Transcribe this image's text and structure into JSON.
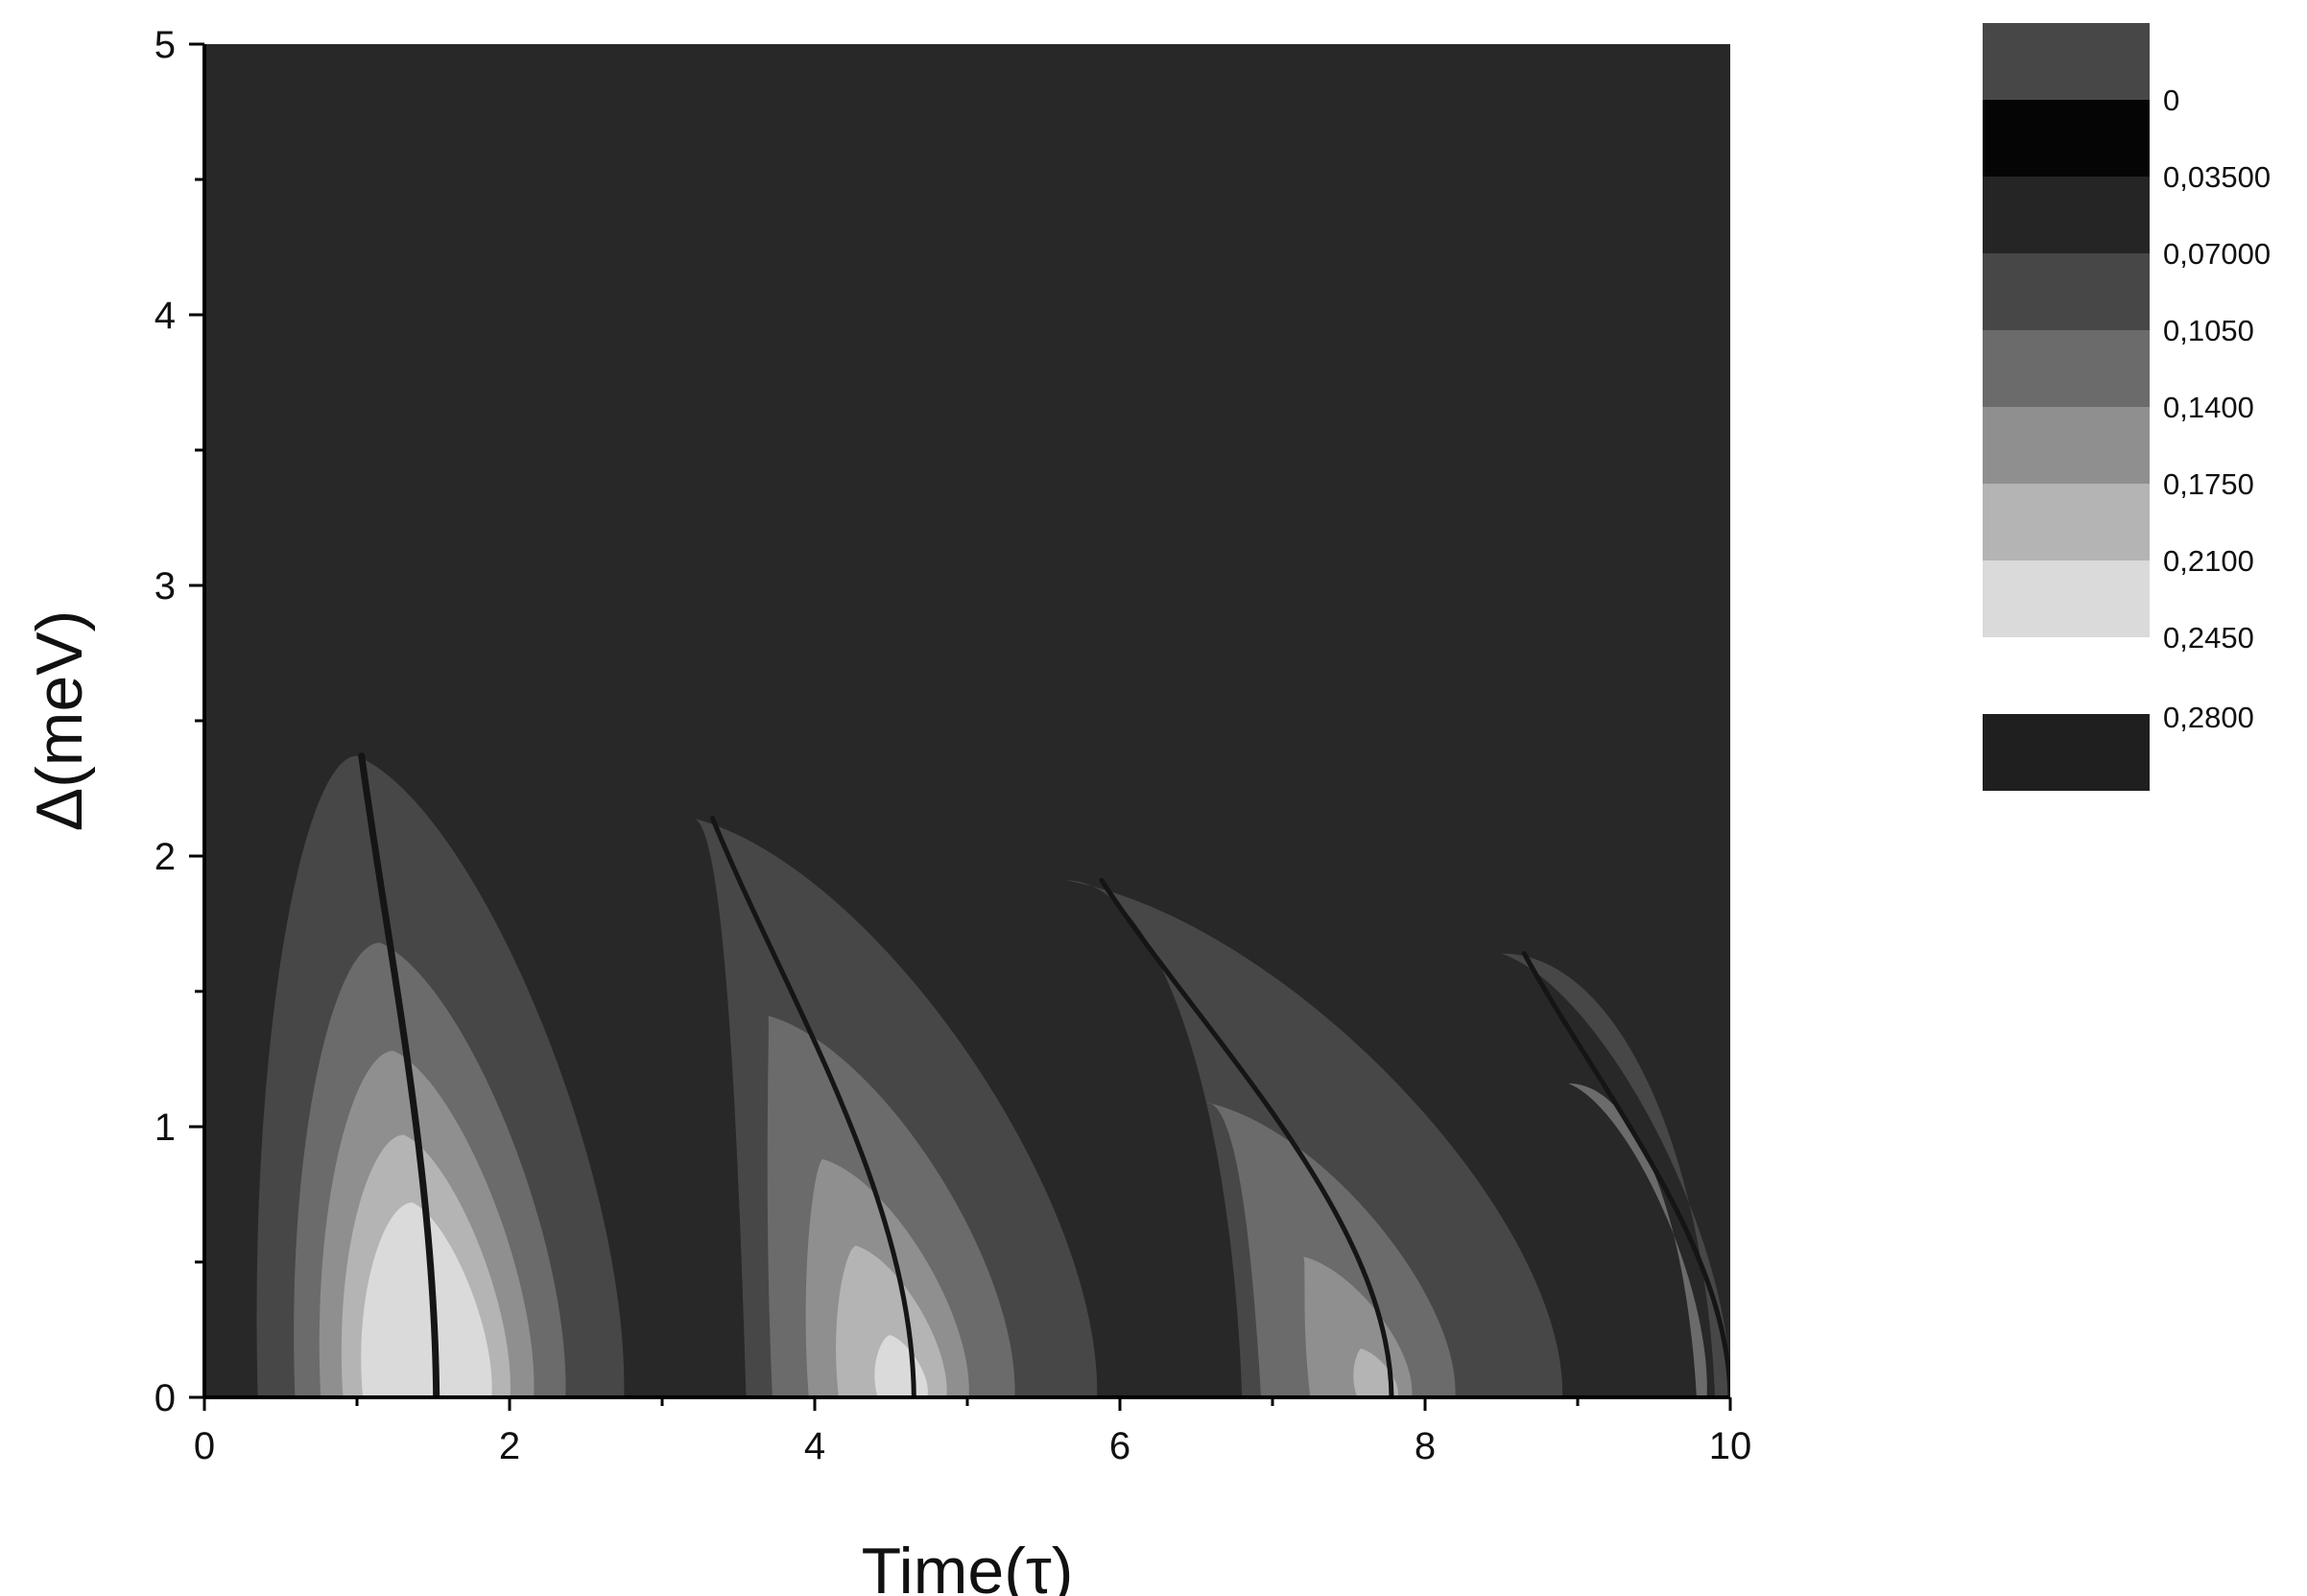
{
  "chart_data": {
    "type": "heatmap",
    "xlabel": "Time(τ)",
    "ylabel": "Δ(meV)",
    "xlim": [
      0,
      10
    ],
    "ylim": [
      0,
      5
    ],
    "x_ticks": [
      "0",
      "2",
      "4",
      "6",
      "8",
      "10"
    ],
    "y_ticks": [
      "0",
      "1",
      "2",
      "3",
      "4",
      "5"
    ],
    "x_minor_step": 1,
    "y_minor_step": 0.5,
    "grid": false,
    "legend_position": "right",
    "legend": {
      "levels": [
        "0",
        "0,03500",
        "0,07000",
        "0,1050",
        "0,1400",
        "0,1750",
        "0,2100",
        "0,2450",
        "0,2800"
      ],
      "colors": [
        "#474747",
        "#050505",
        "#252525",
        "#474747",
        "#6b6b6b",
        "#8f8f8f",
        "#b4b4b4",
        "#dadada"
      ],
      "overflow_color": "#1f1f1f"
    },
    "background_color": "#282828",
    "lobes": [
      {
        "x_start": 0.35,
        "x_end": 2.75,
        "x_peak": 1.0,
        "y_peak": 2.37,
        "ridge_bottom": 1.52,
        "ridge_top": 1.03,
        "contour_heights": [
          2.37,
          1.68,
          1.28,
          0.97,
          0.72,
          0.48,
          0.23
        ]
      },
      {
        "x_start": 3.55,
        "x_end": 5.85,
        "x_peak": 3.2,
        "y_peak": 2.14,
        "ridge_bottom": 4.65,
        "ridge_top": 3.33,
        "contour_heights": [
          2.14,
          1.41,
          0.88,
          0.56,
          0.23
        ]
      },
      {
        "x_start": 6.8,
        "x_end": 8.9,
        "x_peak": 5.65,
        "y_peak": 1.91,
        "ridge_bottom": 7.78,
        "ridge_top": 5.88,
        "contour_heights": [
          1.91,
          1.09,
          0.52,
          0.18
        ]
      },
      {
        "x_start": 9.9,
        "x_end": 10.0,
        "x_peak": 8.5,
        "y_peak": 1.64,
        "ridge_bottom": 10.0,
        "ridge_top": 8.65,
        "contour_heights": [
          1.64,
          1.16
        ]
      }
    ]
  }
}
